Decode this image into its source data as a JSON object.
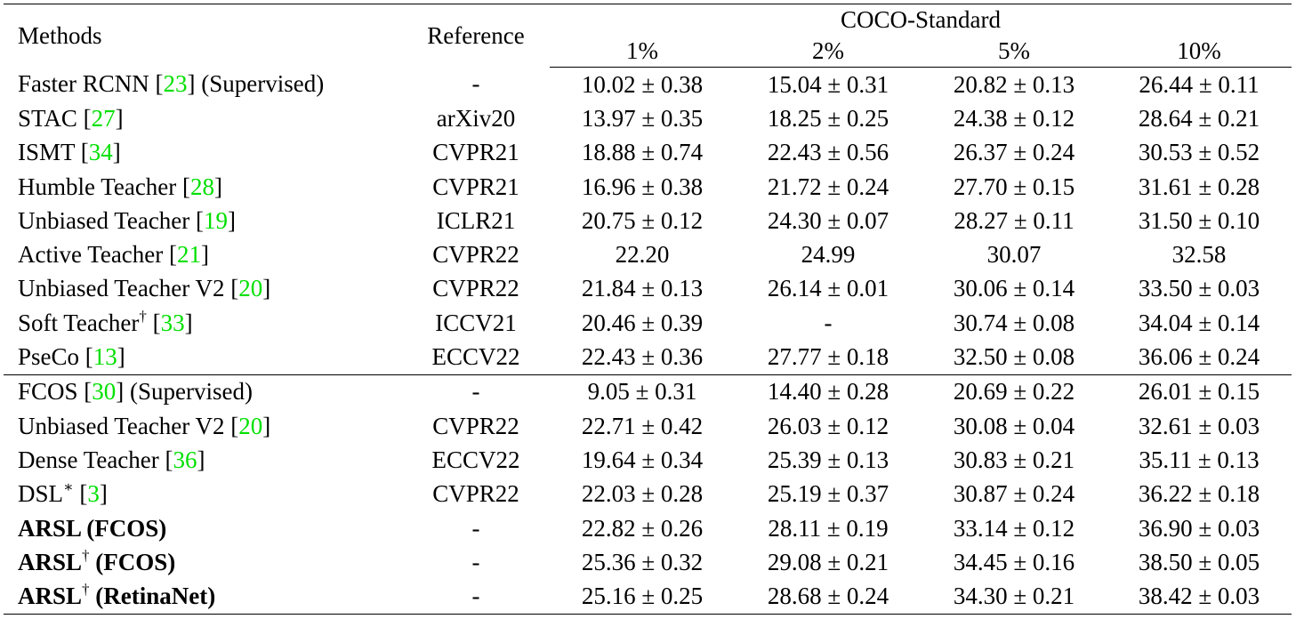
{
  "table": {
    "header": {
      "methods": "Methods",
      "reference": "Reference",
      "group": "COCO-Standard",
      "cols": [
        "1%",
        "2%",
        "5%",
        "10%"
      ]
    },
    "rows": [
      {
        "name": "Faster RCNN",
        "cite": "23",
        "suffix": " (Supervised)",
        "sup": "",
        "bold": false,
        "ref": "-",
        "v": [
          "10.02 ± 0.38",
          "15.04 ± 0.31",
          "20.82 ± 0.13",
          "26.44 ± 0.11"
        ]
      },
      {
        "name": "STAC",
        "cite": "27",
        "suffix": "",
        "sup": "",
        "bold": false,
        "ref": "arXiv20",
        "v": [
          "13.97 ± 0.35",
          "18.25 ± 0.25",
          "24.38 ± 0.12",
          "28.64 ± 0.21"
        ]
      },
      {
        "name": "ISMT",
        "cite": "34",
        "suffix": "",
        "sup": "",
        "bold": false,
        "ref": "CVPR21",
        "v": [
          "18.88 ± 0.74",
          "22.43 ± 0.56",
          "26.37 ± 0.24",
          "30.53 ± 0.52"
        ]
      },
      {
        "name": "Humble Teacher",
        "cite": "28",
        "suffix": "",
        "sup": "",
        "bold": false,
        "ref": "CVPR21",
        "v": [
          "16.96 ± 0.38",
          "21.72 ± 0.24",
          "27.70 ± 0.15",
          "31.61 ± 0.28"
        ]
      },
      {
        "name": "Unbiased Teacher",
        "cite": "19",
        "suffix": "",
        "sup": "",
        "bold": false,
        "ref": "ICLR21",
        "v": [
          "20.75 ± 0.12",
          "24.30 ± 0.07",
          "28.27 ± 0.11",
          "31.50 ± 0.10"
        ]
      },
      {
        "name": "Active Teacher",
        "cite": "21",
        "suffix": "",
        "sup": "",
        "bold": false,
        "ref": "CVPR22",
        "v": [
          "22.20",
          "24.99",
          "30.07",
          "32.58"
        ]
      },
      {
        "name": "Unbiased Teacher V2",
        "cite": "20",
        "suffix": "",
        "sup": "",
        "bold": false,
        "ref": "CVPR22",
        "v": [
          "21.84 ± 0.13",
          "26.14 ± 0.01",
          "30.06 ± 0.14",
          "33.50 ± 0.03"
        ]
      },
      {
        "name": "Soft Teacher",
        "cite": "33",
        "suffix": "",
        "sup": "†",
        "bold": false,
        "ref": "ICCV21",
        "v": [
          "20.46 ± 0.39",
          "-",
          "30.74 ± 0.08",
          "34.04 ± 0.14"
        ]
      },
      {
        "name": "PseCo",
        "cite": "13",
        "suffix": "",
        "sup": "",
        "bold": false,
        "ref": "ECCV22",
        "v": [
          "22.43 ± 0.36",
          "27.77 ± 0.18",
          "32.50 ± 0.08",
          "36.06 ± 0.24"
        ]
      },
      {
        "name": "FCOS",
        "cite": "30",
        "suffix": " (Supervised)",
        "sup": "",
        "bold": false,
        "ref": "-",
        "v": [
          "9.05 ± 0.31",
          "14.40 ± 0.28",
          "20.69 ± 0.22",
          "26.01 ± 0.15"
        ],
        "sep": true
      },
      {
        "name": "Unbiased Teacher V2",
        "cite": "20",
        "suffix": "",
        "sup": "",
        "bold": false,
        "ref": "CVPR22",
        "v": [
          "22.71 ± 0.42",
          "26.03 ± 0.12",
          "30.08 ± 0.04",
          "32.61 ± 0.03"
        ]
      },
      {
        "name": "Dense Teacher",
        "cite": "36",
        "suffix": "",
        "sup": "",
        "bold": false,
        "ref": "ECCV22",
        "v": [
          "19.64 ± 0.34",
          "25.39 ± 0.13",
          "30.83 ± 0.21",
          "35.11 ± 0.13"
        ]
      },
      {
        "name": "DSL",
        "cite": "3",
        "suffix": "",
        "sup": "∗",
        "bold": false,
        "ref": "CVPR22",
        "v": [
          "22.03 ± 0.28",
          "25.19 ± 0.37",
          "30.87 ± 0.24",
          "36.22 ± 0.18"
        ]
      },
      {
        "name": "ARSL",
        "cite": "",
        "suffix": " (FCOS)",
        "sup": "",
        "bold": true,
        "ref": "-",
        "v": [
          "22.82 ± 0.26",
          "28.11 ± 0.19",
          "33.14 ± 0.12",
          "36.90 ± 0.03"
        ]
      },
      {
        "name": "ARSL",
        "cite": "",
        "suffix": " (FCOS)",
        "sup": "†",
        "bold": true,
        "ref": "-",
        "v": [
          "25.36 ± 0.32",
          "29.08 ± 0.21",
          "34.45 ± 0.16",
          "38.50 ± 0.05"
        ]
      },
      {
        "name": "ARSL",
        "cite": "",
        "suffix": " (RetinaNet)",
        "sup": "†",
        "bold": true,
        "ref": "-",
        "v": [
          "25.16 ± 0.25",
          "28.68 ± 0.24",
          "34.30 ± 0.21",
          "38.42 ± 0.03"
        ]
      }
    ]
  }
}
